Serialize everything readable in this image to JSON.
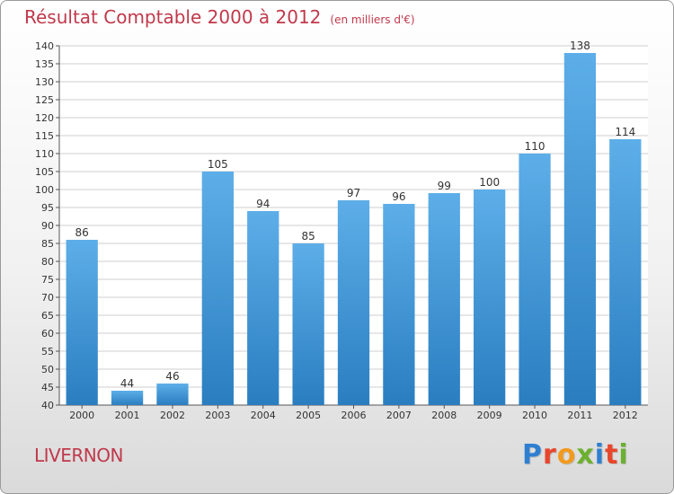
{
  "header": {
    "title": "Résultat Comptable 2000 à 2012",
    "subtitle": "(en milliers d'€)"
  },
  "footer": {
    "place": "LIVERNON",
    "logo": {
      "text": "Proxiti",
      "letter_colors": [
        "#2f7fd0",
        "#e8462b",
        "#f29a1e",
        "#6bb02f",
        "#2f7fd0",
        "#e8462b",
        "#6bb02f"
      ]
    }
  },
  "chart_data": {
    "type": "bar",
    "categories": [
      "2000",
      "2001",
      "2002",
      "2003",
      "2004",
      "2005",
      "2006",
      "2007",
      "2008",
      "2009",
      "2010",
      "2011",
      "2012"
    ],
    "values": [
      86,
      44,
      46,
      105,
      94,
      85,
      97,
      96,
      99,
      100,
      110,
      138,
      114
    ],
    "ylim": [
      40,
      140
    ],
    "ytick_step": 5,
    "grid": true,
    "bar_color_top": "#5daee8",
    "bar_color_bottom": "#2a7ec0",
    "title": "Résultat Comptable 2000 à 2012",
    "xlabel": "",
    "ylabel": ""
  }
}
